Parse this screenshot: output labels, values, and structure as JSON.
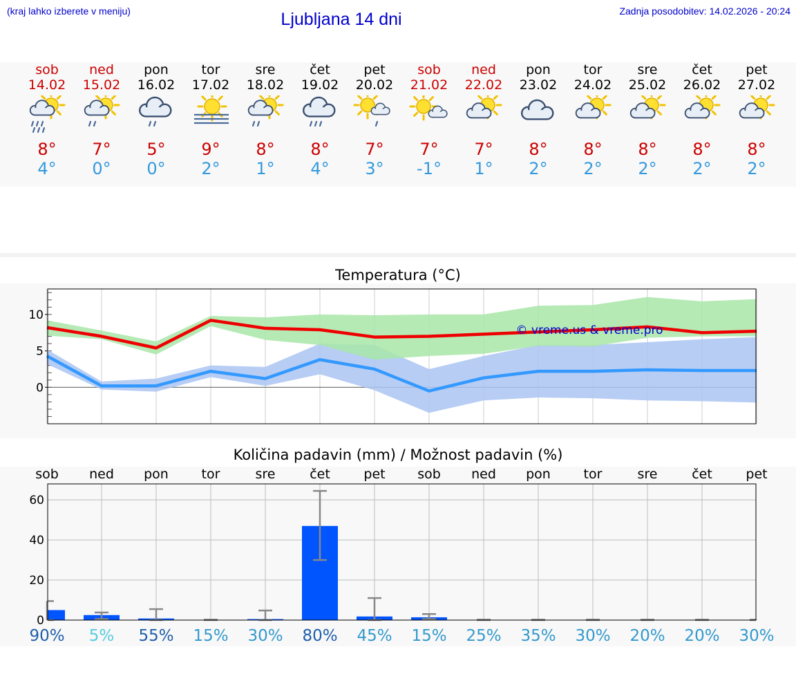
{
  "header": {
    "hint": "(kraj lahko izberete v meniju)",
    "title": "Ljubljana 14 dni",
    "updated": "Zadnja posodobitev: 14.02.2026 - 20:24"
  },
  "days": [
    {
      "name": "sob",
      "date": "14.02",
      "weekend": true,
      "icon": "sun-cloud-heavy-rain-icon",
      "tmax": "8°",
      "tmin": "4°"
    },
    {
      "name": "ned",
      "date": "15.02",
      "weekend": true,
      "icon": "sun-cloud-rain-icon",
      "tmax": "7°",
      "tmin": "0°"
    },
    {
      "name": "pon",
      "date": "16.02",
      "weekend": false,
      "icon": "cloud-rain-icon",
      "tmax": "5°",
      "tmin": "0°"
    },
    {
      "name": "tor",
      "date": "17.02",
      "weekend": false,
      "icon": "sun-fog-icon",
      "tmax": "9°",
      "tmin": "2°"
    },
    {
      "name": "sre",
      "date": "18.02",
      "weekend": false,
      "icon": "sun-cloud-rain-icon",
      "tmax": "8°",
      "tmin": "1°"
    },
    {
      "name": "čet",
      "date": "19.02",
      "weekend": false,
      "icon": "cloud-heavy-rain-icon",
      "tmax": "8°",
      "tmin": "4°"
    },
    {
      "name": "pet",
      "date": "20.02",
      "weekend": false,
      "icon": "sun-small-cloud-rain-icon",
      "tmax": "7°",
      "tmin": "3°"
    },
    {
      "name": "sob",
      "date": "21.02",
      "weekend": true,
      "icon": "sun-small-cloud-icon",
      "tmax": "7°",
      "tmin": "-1°"
    },
    {
      "name": "ned",
      "date": "22.02",
      "weekend": true,
      "icon": "sun-cloud-icon",
      "tmax": "7°",
      "tmin": "1°"
    },
    {
      "name": "pon",
      "date": "23.02",
      "weekend": false,
      "icon": "cloud-icon",
      "tmax": "8°",
      "tmin": "2°"
    },
    {
      "name": "tor",
      "date": "24.02",
      "weekend": false,
      "icon": "sun-cloud-icon",
      "tmax": "8°",
      "tmin": "2°"
    },
    {
      "name": "sre",
      "date": "25.02",
      "weekend": false,
      "icon": "sun-cloud-icon",
      "tmax": "8°",
      "tmin": "2°"
    },
    {
      "name": "čet",
      "date": "26.02",
      "weekend": false,
      "icon": "sun-cloud-icon",
      "tmax": "8°",
      "tmin": "2°"
    },
    {
      "name": "pet",
      "date": "27.02",
      "weekend": false,
      "icon": "sun-cloud-icon",
      "tmax": "8°",
      "tmin": "2°"
    }
  ],
  "colors": {
    "weekend": "#cc0000",
    "tmax": "#cc0000",
    "tmin": "#3399dd",
    "max_line": "#ee0000",
    "max_band": "#a8e6a8",
    "min_line": "#3399ff",
    "min_band": "#aac4f2",
    "bar": "#0055ff",
    "brand": "#0000cc"
  },
  "chart_data": [
    {
      "type": "line",
      "title": "Temperatura (°C)",
      "watermark": "© vreme.us & vreme.pro",
      "ylim": [
        -5,
        13.5
      ],
      "yticks": [
        0,
        5,
        10
      ],
      "grid": true,
      "x": [
        0,
        1,
        2,
        3,
        4,
        5,
        6,
        7,
        8,
        9,
        10,
        11,
        12,
        13
      ],
      "series": [
        {
          "role": "max",
          "values": [
            8.2,
            7.0,
            5.4,
            9.2,
            8.1,
            7.9,
            6.9,
            7.0,
            7.3,
            7.6,
            7.9,
            8.3,
            7.5,
            7.7
          ],
          "band_low": [
            7.1,
            6.6,
            4.5,
            8.4,
            6.5,
            5.8,
            3.8,
            4.3,
            4.6,
            5.7,
            5.6,
            6.8,
            7.0,
            7.0
          ],
          "band_high": [
            9.2,
            7.8,
            6.3,
            9.8,
            9.6,
            10.0,
            9.9,
            10.0,
            10.0,
            11.2,
            11.3,
            12.4,
            11.8,
            12.1
          ]
        },
        {
          "role": "min",
          "values": [
            4.3,
            0.2,
            0.2,
            2.2,
            1.2,
            3.8,
            2.5,
            -0.5,
            1.3,
            2.2,
            2.2,
            2.4,
            2.3,
            2.3
          ],
          "band_low": [
            3.2,
            -0.3,
            -0.6,
            1.4,
            0.2,
            1.8,
            -0.4,
            -3.5,
            -1.8,
            -1.4,
            -1.5,
            -1.8,
            -1.9,
            -2.1
          ],
          "band_high": [
            5.2,
            0.8,
            1.2,
            3.0,
            2.8,
            6.0,
            5.8,
            2.5,
            4.3,
            5.8,
            5.8,
            6.2,
            6.6,
            6.9
          ]
        }
      ]
    },
    {
      "type": "bar",
      "title": "Količina padavin (mm) / Možnost padavin (%)",
      "ylim": [
        0,
        68
      ],
      "yticks": [
        0,
        20,
        40,
        60
      ],
      "grid": true,
      "categories": [
        "sob",
        "ned",
        "pon",
        "tor",
        "sre",
        "čet",
        "pet",
        "sob",
        "ned",
        "pon",
        "tor",
        "sre",
        "čet",
        "pet"
      ],
      "values": [
        5.0,
        2.5,
        0.8,
        0,
        0.5,
        47.0,
        1.8,
        1.4,
        0,
        0,
        0,
        0,
        0,
        0
      ],
      "err_low": [
        0,
        0.5,
        0,
        0,
        0,
        30.0,
        0,
        0.5,
        0,
        0,
        0,
        0,
        0,
        0
      ],
      "err_high": [
        9.5,
        3.8,
        5.5,
        0.2,
        4.8,
        64.5,
        11.0,
        3.0,
        0.2,
        0.2,
        0.2,
        0.2,
        0.2,
        0.2
      ],
      "probabilities": [
        "90%",
        "5%",
        "55%",
        "15%",
        "30%",
        "80%",
        "45%",
        "15%",
        "25%",
        "35%",
        "30%",
        "20%",
        "20%",
        "30%"
      ],
      "probability_colors": [
        "#1f5faa",
        "#55cce0",
        "#1f5faa",
        "#3399cc",
        "#3399cc",
        "#1f5faa",
        "#3399cc",
        "#3399cc",
        "#3399cc",
        "#3399cc",
        "#3399cc",
        "#3399cc",
        "#3399cc",
        "#3399cc"
      ]
    }
  ]
}
